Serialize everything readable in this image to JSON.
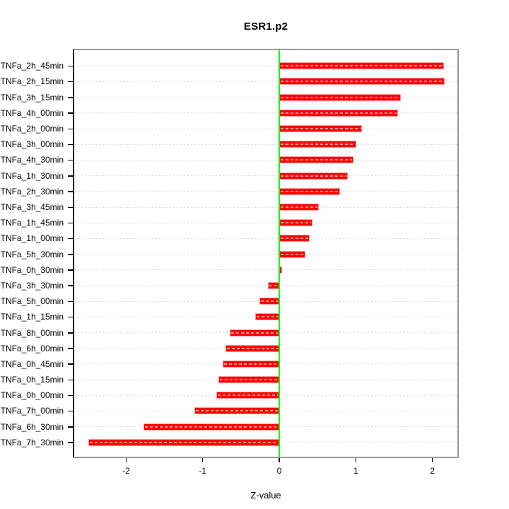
{
  "chart_data": {
    "type": "bar",
    "orientation": "horizontal",
    "title": "ESR1.p2",
    "xlabel": "Z-value",
    "ylabel": "",
    "categories": [
      "TNFa_2h_45min",
      "TNFa_2h_15min",
      "TNFa_3h_15min",
      "TNFa_4h_00min",
      "TNFa_2h_00min",
      "TNFa_3h_00min",
      "TNFa_4h_30min",
      "TNFa_1h_30min",
      "TNFa_2h_30min",
      "TNFa_3h_45min",
      "TNFa_1h_45min",
      "TNFa_1h_00min",
      "TNFa_5h_30min",
      "TNFa_0h_30min",
      "TNFa_3h_30min",
      "TNFa_5h_00min",
      "TNFa_1h_15min",
      "TNFa_8h_00min",
      "TNFa_6h_00min",
      "TNFa_0h_45min",
      "TNFa_0h_15min",
      "TNFa_0h_00min",
      "TNFa_7h_00min",
      "TNFa_6h_30min",
      "TNFa_7h_30min"
    ],
    "values": [
      2.15,
      2.16,
      1.59,
      1.55,
      1.08,
      1.01,
      0.97,
      0.9,
      0.79,
      0.52,
      0.43,
      0.4,
      0.34,
      0.04,
      -0.15,
      -0.26,
      -0.31,
      -0.65,
      -0.7,
      -0.74,
      -0.79,
      -0.82,
      -1.11,
      -1.77,
      -2.49
    ],
    "x_ticks": [
      -2,
      -1,
      0,
      1,
      2
    ],
    "xlim": [
      -2.68,
      2.33
    ],
    "zero_reference_line": 0,
    "grid": true,
    "legend_position": "none",
    "colors": {
      "bar_fill": "#ff0000",
      "bar_border": "#ff9999",
      "bar_dash": "rgba(255,255,255,0.6)",
      "zero_line": "#00ff00",
      "gridline": "#d8d8d8",
      "box_border": "#999999",
      "axis_line": "#222222",
      "tick": "#000000",
      "text": "#000000",
      "background": "#ffffff"
    }
  }
}
